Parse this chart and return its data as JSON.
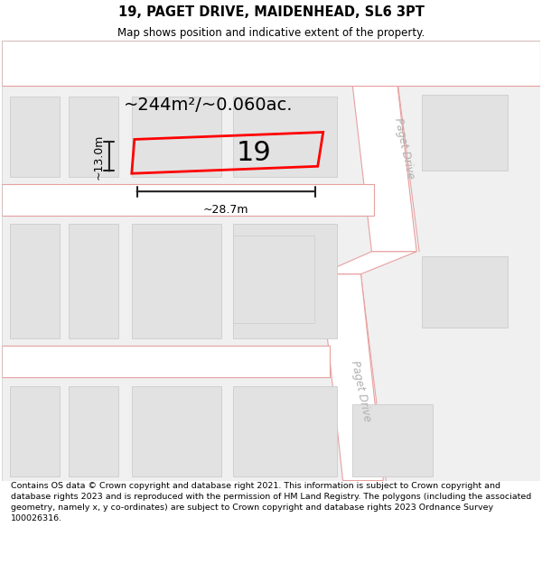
{
  "title": "19, PAGET DRIVE, MAIDENHEAD, SL6 3PT",
  "subtitle": "Map shows position and indicative extent of the property.",
  "footer": "Contains OS data © Crown copyright and database right 2021. This information is subject to Crown copyright and database rights 2023 and is reproduced with the permission of HM Land Registry. The polygons (including the associated geometry, namely x, y co-ordinates) are subject to Crown copyright and database rights 2023 Ordnance Survey 100026316.",
  "area_text": "~244m²/~0.060ac.",
  "number_text": "19",
  "width_text": "~28.7m",
  "height_text": "~13.0m",
  "street_label": "Paget Drive",
  "map_bg": "#f0f0f0",
  "road_fill": "#ffffff",
  "road_outline": "#e8a0a0",
  "bld_fill": "#e2e2e2",
  "bld_edge": "#cccccc",
  "highlight": "#ff0000",
  "title_fontsize": 10.5,
  "subtitle_fontsize": 8.5,
  "footer_fontsize": 6.8,
  "area_fontsize": 14,
  "number_fontsize": 22,
  "dim_fontsize": 9,
  "street_fontsize": 8.5
}
